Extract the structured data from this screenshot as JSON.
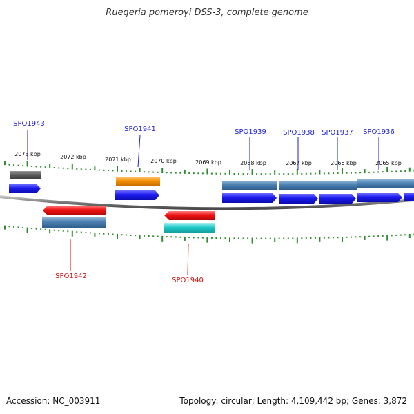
{
  "title": "Ruegeria pomeroyi DSS-3, complete genome",
  "footer": {
    "accession": "Accession: NC_003911",
    "summary": "Topology: circular; Length: 4,109,442 bp; Genes: 3,872"
  },
  "colors": {
    "backbone": "#7a7a7a",
    "tick": "#2e8b2e",
    "forward_label": "#1f1fd6",
    "reverse_label": "#cc1111",
    "cds_forward": "#1a1aee",
    "cds_reverse": "#ee1111",
    "gene_blue": "#4a7fb0",
    "gene_gray": "#666666",
    "gene_orange": "#f08c00",
    "gene_cyan": "#1ec8c8"
  },
  "kbp_labels": [
    "2073 kbp",
    "2072 kbp",
    "2071 kbp",
    "2070 kbp",
    "2069 kbp",
    "2068 kbp",
    "2067 kbp",
    "2066 kbp",
    "2065 kbp"
  ],
  "gene_labels": {
    "spo1943": "SPO1943",
    "spo1942": "SPO1942",
    "spo1941": "SPO1941",
    "spo1940": "SPO1940",
    "spo1939": "SPO1939",
    "spo1938": "SPO1938",
    "spo1937": "SPO1937",
    "spo1936": "SPO1936"
  }
}
